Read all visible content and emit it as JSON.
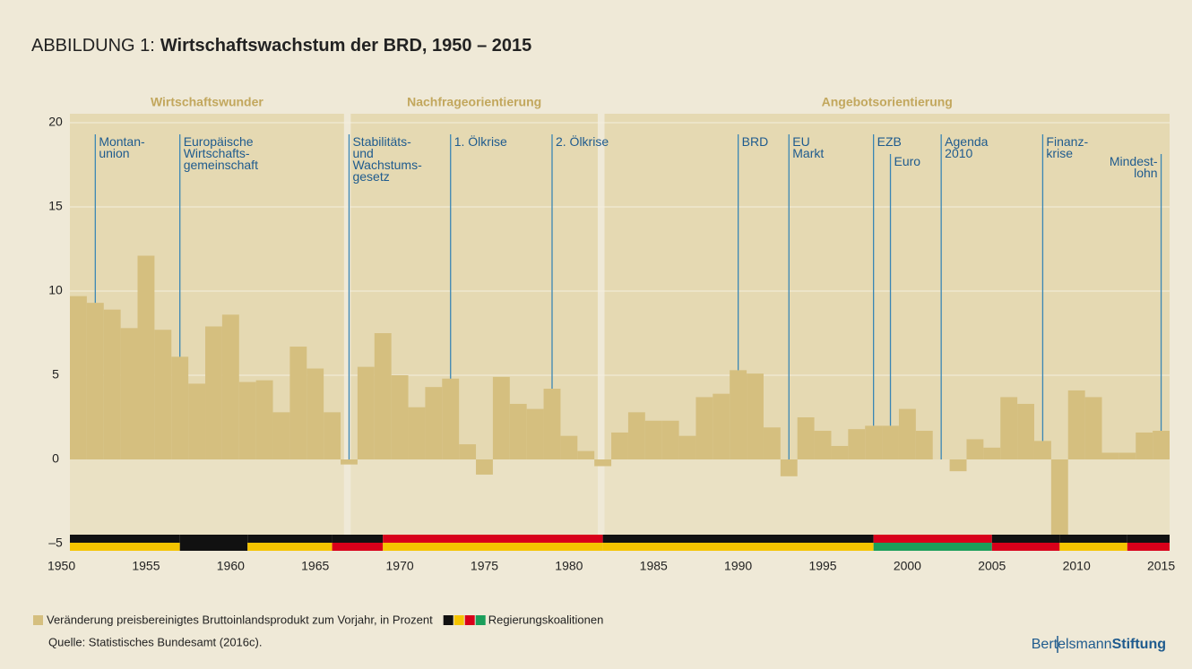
{
  "chart_data": {
    "type": "bar",
    "title_prefix": "ABBILDUNG 1:",
    "title": "Wirtschaftswachstum der BRD, 1950 – 2015",
    "x": [
      1951,
      1952,
      1953,
      1954,
      1955,
      1956,
      1957,
      1958,
      1959,
      1960,
      1961,
      1962,
      1963,
      1964,
      1965,
      1966,
      1967,
      1968,
      1969,
      1970,
      1971,
      1972,
      1973,
      1974,
      1975,
      1976,
      1977,
      1978,
      1979,
      1980,
      1981,
      1982,
      1983,
      1984,
      1985,
      1986,
      1987,
      1988,
      1989,
      1990,
      1991,
      1992,
      1993,
      1994,
      1995,
      1996,
      1997,
      1998,
      1999,
      2000,
      2001,
      2002,
      2003,
      2004,
      2005,
      2006,
      2007,
      2008,
      2009,
      2010,
      2011,
      2012,
      2013,
      2014,
      2015
    ],
    "series": [
      {
        "name": "Veränderung preisbereinigtes Bruttoinlandsprodukt zum Vorjahr, in Prozent",
        "color": "#d5bf7f",
        "values": [
          9.7,
          9.3,
          8.9,
          7.8,
          12.1,
          7.7,
          6.1,
          4.5,
          7.9,
          8.6,
          4.6,
          4.7,
          2.8,
          6.7,
          5.4,
          2.8,
          -0.3,
          5.5,
          7.5,
          5.0,
          3.1,
          4.3,
          4.8,
          0.9,
          -0.9,
          4.9,
          3.3,
          3.0,
          4.2,
          1.4,
          0.5,
          -0.4,
          1.6,
          2.8,
          2.3,
          2.3,
          1.4,
          3.7,
          3.9,
          5.3,
          5.1,
          1.9,
          -1.0,
          2.5,
          1.7,
          0.8,
          1.8,
          2.0,
          2.0,
          3.0,
          1.7,
          0.0,
          -0.7,
          1.2,
          0.7,
          3.7,
          3.3,
          1.1,
          -5.6,
          4.1,
          3.7,
          0.4,
          0.4,
          1.6,
          1.7
        ]
      }
    ],
    "xlim": [
      1950.5,
      2015.5
    ],
    "xticks": [
      1950,
      1955,
      1960,
      1965,
      1970,
      1975,
      1980,
      1985,
      1990,
      1995,
      2000,
      2005,
      2010,
      2015
    ],
    "ylim": [
      -5,
      20
    ],
    "yticks": [
      20,
      15,
      10,
      5,
      0,
      {
        "value": -5,
        "label": "–5"
      }
    ],
    "grid": true,
    "phases": [
      {
        "name": "Wirtschaftswunder",
        "from": 1950.5,
        "to": 1966.7
      },
      {
        "name": "Nachfrageorientierung",
        "from": 1967.1,
        "to": 1981.7
      },
      {
        "name": "Angebotsorientierung",
        "from": 1982.1,
        "to": 2015.5
      }
    ],
    "events": [
      {
        "year": 1952,
        "label_lines": [
          "Montan-",
          "union"
        ]
      },
      {
        "year": 1957,
        "label_lines": [
          "Europäische",
          "Wirtschafts-",
          "gemeinschaft"
        ]
      },
      {
        "year": 1967,
        "label_lines": [
          "Stabilitäts-",
          "und",
          "Wachstums-",
          "gesetz"
        ]
      },
      {
        "year": 1973,
        "label_lines": [
          "1. Ölkrise"
        ]
      },
      {
        "year": 1979,
        "label_lines": [
          "2. Ölkrise"
        ]
      },
      {
        "year": 1990,
        "label_lines": [
          "BRD"
        ]
      },
      {
        "year": 1993,
        "label_lines": [
          "EU",
          "Markt"
        ]
      },
      {
        "year": 1998,
        "label_lines": [
          "EZB"
        ]
      },
      {
        "year": 1999,
        "label_lines": [
          "Euro"
        ]
      },
      {
        "year": 2002,
        "label_lines": [
          "Agenda",
          "2010"
        ]
      },
      {
        "year": 2008,
        "label_lines": [
          "Finanz-",
          "krise"
        ]
      },
      {
        "year": 2015,
        "label_lines": [
          "Mindest-",
          "lohn"
        ]
      }
    ],
    "coalition_label": "Regierungskoalitionen",
    "coalitions": [
      {
        "from": 1950.5,
        "to": 1957,
        "colors": [
          "#111111",
          "#f5c400"
        ]
      },
      {
        "from": 1957,
        "to": 1961,
        "colors": [
          "#111111",
          "#111111"
        ]
      },
      {
        "from": 1961,
        "to": 1966,
        "colors": [
          "#111111",
          "#f5c400"
        ]
      },
      {
        "from": 1966,
        "to": 1969,
        "colors": [
          "#111111",
          "#d8001a"
        ]
      },
      {
        "from": 1969,
        "to": 1982,
        "colors": [
          "#d8001a",
          "#f5c400"
        ]
      },
      {
        "from": 1982,
        "to": 1998,
        "colors": [
          "#111111",
          "#f5c400"
        ]
      },
      {
        "from": 1998,
        "to": 2005,
        "colors": [
          "#d8001a",
          "#1a9e5a"
        ]
      },
      {
        "from": 2005,
        "to": 2009,
        "colors": [
          "#111111",
          "#d8001a"
        ]
      },
      {
        "from": 2009,
        "to": 2013,
        "colors": [
          "#111111",
          "#f5c400"
        ]
      },
      {
        "from": 2013,
        "to": 2015.5,
        "colors": [
          "#111111",
          "#d8001a"
        ]
      }
    ],
    "source": "Quelle: Statistisches Bundesamt (2016c).",
    "logo": [
      "Bertelsmann",
      "Stiftung"
    ]
  }
}
